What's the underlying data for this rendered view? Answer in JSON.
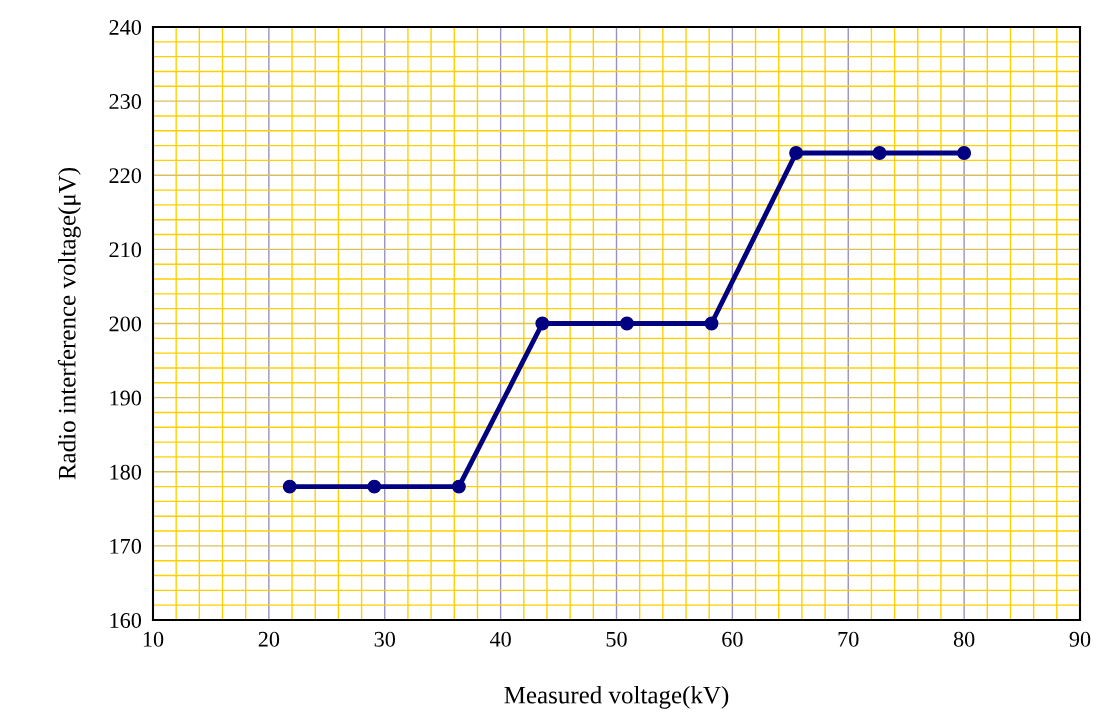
{
  "chart_data": {
    "type": "line",
    "xlabel": "Measured voltage(kV)",
    "ylabel": "Radio interference voltage(μV)",
    "x": [
      21.8,
      29.1,
      36.4,
      43.6,
      50.9,
      58.2,
      65.5,
      72.7,
      80
    ],
    "series": [
      {
        "color": "#000080",
        "values": [
          178,
          178,
          178,
          200,
          200,
          200,
          223,
          223,
          223
        ]
      }
    ],
    "xlim": [
      10,
      90
    ],
    "xticks": [
      10,
      {
        "value": 12,
        "label": null
      },
      {
        "value": 14,
        "label": null
      },
      {
        "value": 16,
        "label": null
      },
      {
        "value": 18,
        "label": null
      },
      20,
      {
        "value": 22,
        "label": null
      },
      {
        "value": 24,
        "label": null
      },
      {
        "value": 26,
        "label": null
      },
      {
        "value": 28,
        "label": null
      },
      30,
      {
        "value": 32,
        "label": null
      },
      {
        "value": 34,
        "label": null
      },
      {
        "value": 36,
        "label": null
      },
      {
        "value": 38,
        "label": null
      },
      40,
      {
        "value": 42,
        "label": null
      },
      {
        "value": 44,
        "label": null
      },
      {
        "value": 46,
        "label": null
      },
      {
        "value": 48,
        "label": null
      },
      50,
      {
        "value": 52,
        "label": null
      },
      {
        "value": 54,
        "label": null
      },
      {
        "value": 56,
        "label": null
      },
      {
        "value": 58,
        "label": null
      },
      60,
      {
        "value": 62,
        "label": null
      },
      {
        "value": 64,
        "label": null
      },
      {
        "value": 66,
        "label": null
      },
      {
        "value": 68,
        "label": null
      },
      70,
      {
        "value": 72,
        "label": null
      },
      {
        "value": 74,
        "label": null
      },
      {
        "value": 76,
        "label": null
      },
      {
        "value": 78,
        "label": null
      },
      80,
      {
        "value": 82,
        "label": null
      },
      {
        "value": 84,
        "label": null
      },
      {
        "value": 86,
        "label": null
      },
      {
        "value": 88,
        "label": null
      },
      90
    ],
    "ylim": [
      160,
      240
    ],
    "yticks": [
      160,
      {
        "value": 162,
        "label": null
      },
      {
        "value": 164,
        "label": null
      },
      {
        "value": 166,
        "label": null
      },
      {
        "value": 168,
        "label": null
      },
      170,
      {
        "value": 172,
        "label": null
      },
      {
        "value": 174,
        "label": null
      },
      {
        "value": 176,
        "label": null
      },
      {
        "value": 178,
        "label": null
      },
      180,
      {
        "value": 182,
        "label": null
      },
      {
        "value": 184,
        "label": null
      },
      {
        "value": 186,
        "label": null
      },
      {
        "value": 188,
        "label": null
      },
      190,
      {
        "value": 192,
        "label": null
      },
      {
        "value": 194,
        "label": null
      },
      {
        "value": 196,
        "label": null
      },
      {
        "value": 198,
        "label": null
      },
      200,
      {
        "value": 202,
        "label": null
      },
      {
        "value": 204,
        "label": null
      },
      {
        "value": 206,
        "label": null
      },
      {
        "value": 208,
        "label": null
      },
      210,
      {
        "value": 212,
        "label": null
      },
      {
        "value": 214,
        "label": null
      },
      {
        "value": 216,
        "label": null
      },
      {
        "value": 218,
        "label": null
      },
      220,
      {
        "value": 222,
        "label": null
      },
      {
        "value": 224,
        "label": null
      },
      {
        "value": 226,
        "label": null
      },
      {
        "value": 228,
        "label": null
      },
      230,
      {
        "value": 232,
        "label": null
      },
      {
        "value": 234,
        "label": null
      },
      {
        "value": 236,
        "label": null
      },
      {
        "value": 238,
        "label": null
      },
      240
    ],
    "grid": true,
    "marker": "circle",
    "line_style": "solid"
  }
}
